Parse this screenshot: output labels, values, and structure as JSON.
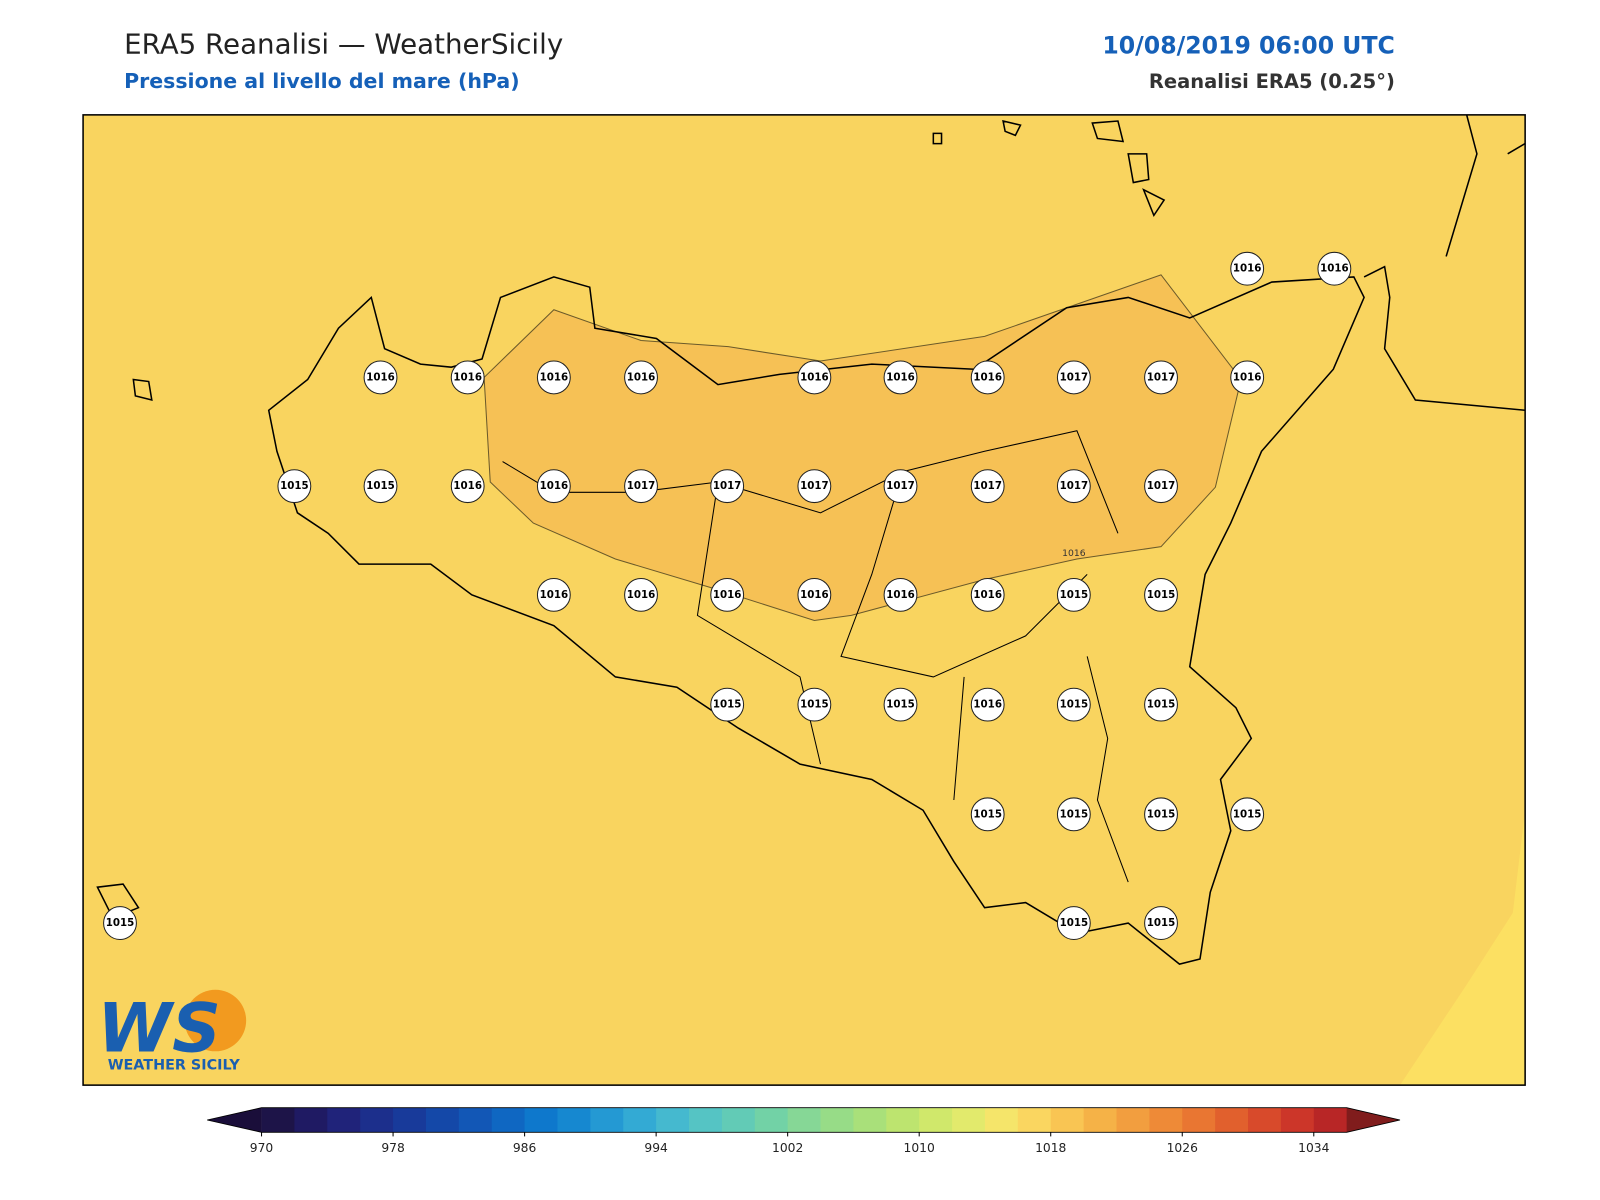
{
  "header": {
    "title": "ERA5 Reanalisi — WeatherSicily",
    "subtitle": "Pressione al livello del mare (hPa)",
    "datetime": "10/08/2019 06:00 UTC",
    "source": "Reanalisi ERA5 (0.25°)"
  },
  "stations": [
    1016,
    1016,
    1016,
    1016,
    1016,
    1016,
    1016,
    1016,
    1016,
    1017,
    1017,
    1016,
    1015,
    1015,
    1016,
    1016,
    1017,
    1017,
    1017,
    1017,
    1017,
    1017,
    1017,
    1016,
    1016,
    1016,
    1016,
    1016,
    1016,
    1015,
    1015,
    1015,
    1015,
    1015,
    1016,
    1015,
    1015,
    1015,
    1015,
    1015,
    1015,
    1015,
    1015,
    1015
  ],
  "contour_label": "1016",
  "colorbar": {
    "lim": [
      970,
      1036
    ],
    "ticks": [
      970,
      978,
      986,
      994,
      1002,
      1010,
      1018,
      1026,
      1034
    ],
    "colors": [
      "#1d1448",
      "#1f1a63",
      "#20237a",
      "#1c2f8c",
      "#183a9a",
      "#1448a8",
      "#1257b6",
      "#0f67c2",
      "#0e78cc",
      "#1688d0",
      "#2499d3",
      "#33aad4",
      "#45b9cf",
      "#55c4c4",
      "#62cbb6",
      "#72d2a6",
      "#86d796",
      "#97dc87",
      "#a9e07a",
      "#bde46f",
      "#d0e86b",
      "#e2ea6c",
      "#f5e56a",
      "#fad660",
      "#f9c553",
      "#f5b247",
      "#f29e3f",
      "#ee8a37",
      "#e97632",
      "#e1602d",
      "#d84a2b",
      "#cc3629",
      "#b82626"
    ],
    "under": "#1a0e3a",
    "over": "#801c1c"
  },
  "logo": {
    "mark": "WS",
    "text": "WEATHER SICILY"
  }
}
